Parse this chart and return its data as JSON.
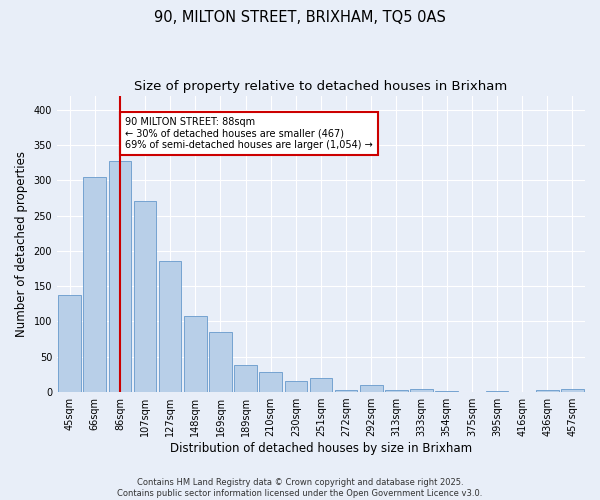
{
  "title": "90, MILTON STREET, BRIXHAM, TQ5 0AS",
  "subtitle": "Size of property relative to detached houses in Brixham",
  "xlabel": "Distribution of detached houses by size in Brixham",
  "ylabel": "Number of detached properties",
  "categories": [
    "45sqm",
    "66sqm",
    "86sqm",
    "107sqm",
    "127sqm",
    "148sqm",
    "169sqm",
    "189sqm",
    "210sqm",
    "230sqm",
    "251sqm",
    "272sqm",
    "292sqm",
    "313sqm",
    "333sqm",
    "354sqm",
    "375sqm",
    "395sqm",
    "416sqm",
    "436sqm",
    "457sqm"
  ],
  "values": [
    137,
    305,
    327,
    270,
    185,
    108,
    85,
    39,
    28,
    16,
    20,
    3,
    10,
    3,
    5,
    1,
    0,
    1,
    0,
    3,
    4
  ],
  "bar_color": "#b8cfe8",
  "bar_edge_color": "#6699cc",
  "vline_x": 2,
  "vline_color": "#cc0000",
  "annotation_text": "90 MILTON STREET: 88sqm\n← 30% of detached houses are smaller (467)\n69% of semi-detached houses are larger (1,054) →",
  "annotation_box_color": "#ffffff",
  "annotation_box_edge_color": "#cc0000",
  "ylim": [
    0,
    420
  ],
  "yticks": [
    0,
    50,
    100,
    150,
    200,
    250,
    300,
    350,
    400
  ],
  "bg_color": "#e8eef8",
  "plot_bg_color": "#e8eef8",
  "footer_text": "Contains HM Land Registry data © Crown copyright and database right 2025.\nContains public sector information licensed under the Open Government Licence v3.0.",
  "title_fontsize": 10.5,
  "subtitle_fontsize": 9.5,
  "axis_label_fontsize": 8.5,
  "tick_fontsize": 7,
  "annotation_fontsize": 7,
  "footer_fontsize": 6
}
